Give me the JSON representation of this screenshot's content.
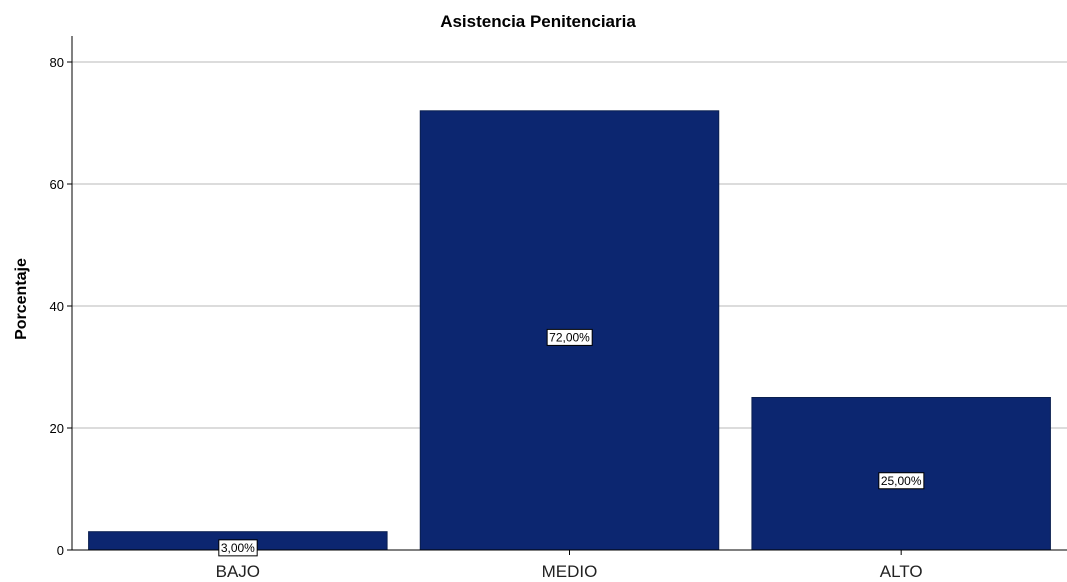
{
  "chart_data": {
    "type": "bar",
    "title": "Asistencia Penitenciaria",
    "xlabel": "",
    "ylabel": "Porcentaje",
    "categories": [
      "BAJO",
      "MEDIO",
      "ALTO"
    ],
    "values": [
      3,
      72,
      25
    ],
    "data_labels": [
      "3,00%",
      "72,00%",
      "25,00%"
    ],
    "ylim": [
      0,
      80
    ],
    "yticks": [
      0,
      20,
      40,
      60,
      80
    ],
    "grid": true,
    "legend": "none",
    "colors": {
      "bar": "#0c2670",
      "grid": "#c8c8c8",
      "axis": "#000000"
    }
  }
}
